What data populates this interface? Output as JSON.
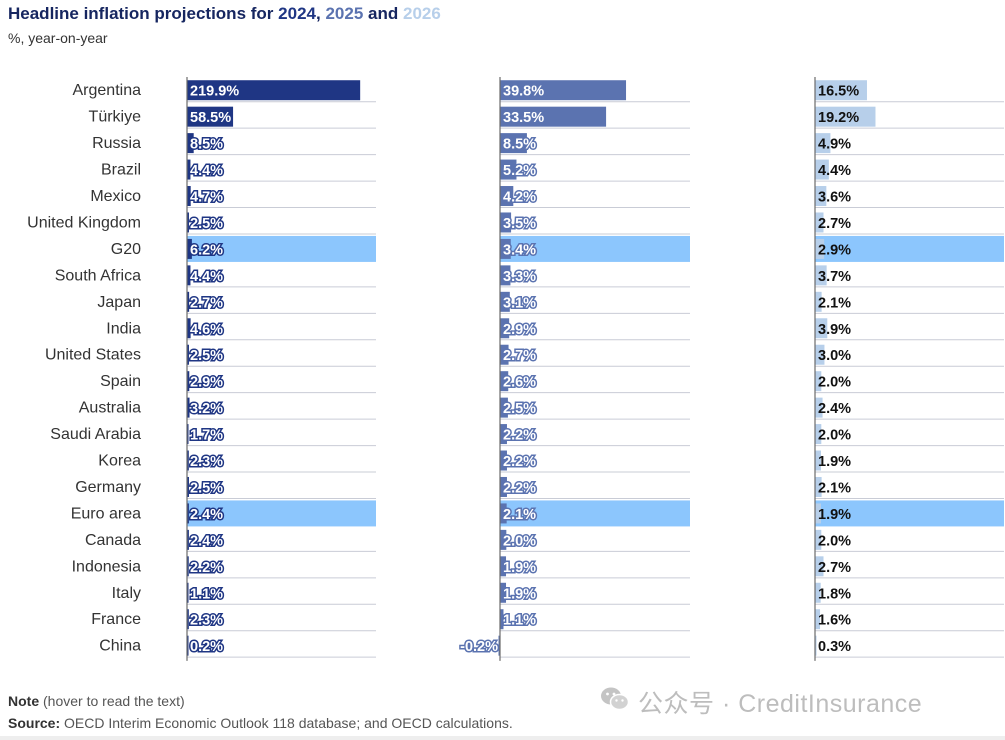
{
  "header": {
    "title_main": "Headline inflation projections for",
    "year1": "2024",
    "sep1": ",",
    "year2": "2025",
    "sep2": "and",
    "year3": "2026",
    "subtitle": "%, year-on-year"
  },
  "footer": {
    "note_label": "Note",
    "note_text": "(hover to read the text)",
    "source_label": "Source:",
    "source_text": "OECD Interim Economic Outlook 118 database; and OECD calculations."
  },
  "watermark": {
    "text": "公众号 · CreditInsurance",
    "icon": "wechat-icon"
  },
  "colors": {
    "title": "#162660",
    "series_2024": "#1f3684",
    "series_2025": "#5b73b0",
    "series_2026": "#b7cfea",
    "highlight": "#8cc6fd",
    "gridline": "#c9ccd6",
    "axis": "#6b6b6b"
  },
  "chart_data": {
    "type": "bar",
    "orientation": "horizontal",
    "layout": "small-multiples",
    "title": "Headline inflation projections for 2024, 2025 and 2026",
    "subtitle": "%, year-on-year",
    "unit": "%",
    "categories": [
      "Argentina",
      "Türkiye",
      "Russia",
      "Brazil",
      "Mexico",
      "United Kingdom",
      "G20",
      "South Africa",
      "Japan",
      "India",
      "United States",
      "Spain",
      "Australia",
      "Saudi Arabia",
      "Korea",
      "Germany",
      "Euro area",
      "Canada",
      "Indonesia",
      "Italy",
      "France",
      "China"
    ],
    "highlighted_categories": [
      "G20",
      "Euro area"
    ],
    "series": [
      {
        "name": "2024",
        "color": "#1f3684",
        "values": [
          219.9,
          58.5,
          8.5,
          4.4,
          4.7,
          2.5,
          6.2,
          4.4,
          2.7,
          4.6,
          2.5,
          2.9,
          3.2,
          1.7,
          2.3,
          2.5,
          2.4,
          2.4,
          2.2,
          1.1,
          2.3,
          0.2
        ],
        "labels": [
          "219.9%",
          "58.5%",
          "8.5%",
          "4.4%",
          "4.7%",
          "2.5%",
          "6.2%",
          "4.4%",
          "2.7%",
          "4.6%",
          "2.5%",
          "2.9%",
          "3.2%",
          "1.7%",
          "2.3%",
          "2.5%",
          "2.4%",
          "2.4%",
          "2.2%",
          "1.1%",
          "2.3%",
          "0.2%"
        ]
      },
      {
        "name": "2025",
        "color": "#5b73b0",
        "values": [
          39.8,
          33.5,
          8.5,
          5.2,
          4.2,
          3.5,
          3.4,
          3.3,
          3.1,
          2.9,
          2.7,
          2.6,
          2.5,
          2.2,
          2.2,
          2.2,
          2.1,
          2.0,
          1.9,
          1.9,
          1.1,
          -0.2
        ],
        "labels": [
          "39.8%",
          "33.5%",
          "8.5%",
          "5.2%",
          "4.2%",
          "3.5%",
          "3.4%",
          "3.3%",
          "3.1%",
          "2.9%",
          "2.7%",
          "2.6%",
          "2.5%",
          "2.2%",
          "2.2%",
          "2.2%",
          "2.1%",
          "2.0%",
          "1.9%",
          "1.9%",
          "1.1%",
          "-0.2%"
        ]
      },
      {
        "name": "2026",
        "color": "#b7cfea",
        "values": [
          16.5,
          19.2,
          4.9,
          4.4,
          3.6,
          2.7,
          2.9,
          3.7,
          2.1,
          3.9,
          3.0,
          2.0,
          2.4,
          2.0,
          1.9,
          2.1,
          1.9,
          2.0,
          2.7,
          1.8,
          1.6,
          0.3
        ],
        "labels": [
          "16.5%",
          "19.2%",
          "4.9%",
          "4.4%",
          "3.6%",
          "2.7%",
          "2.9%",
          "3.7%",
          "2.1%",
          "3.9%",
          "3.0%",
          "2.0%",
          "2.4%",
          "2.0%",
          "1.9%",
          "2.1%",
          "1.9%",
          "2.0%",
          "2.7%",
          "1.8%",
          "1.6%",
          "0.3%"
        ]
      }
    ],
    "xlim": [
      [
        -3,
        240
      ],
      [
        -3,
        60
      ],
      [
        -3,
        60
      ]
    ],
    "grid": true,
    "legend": "none"
  }
}
